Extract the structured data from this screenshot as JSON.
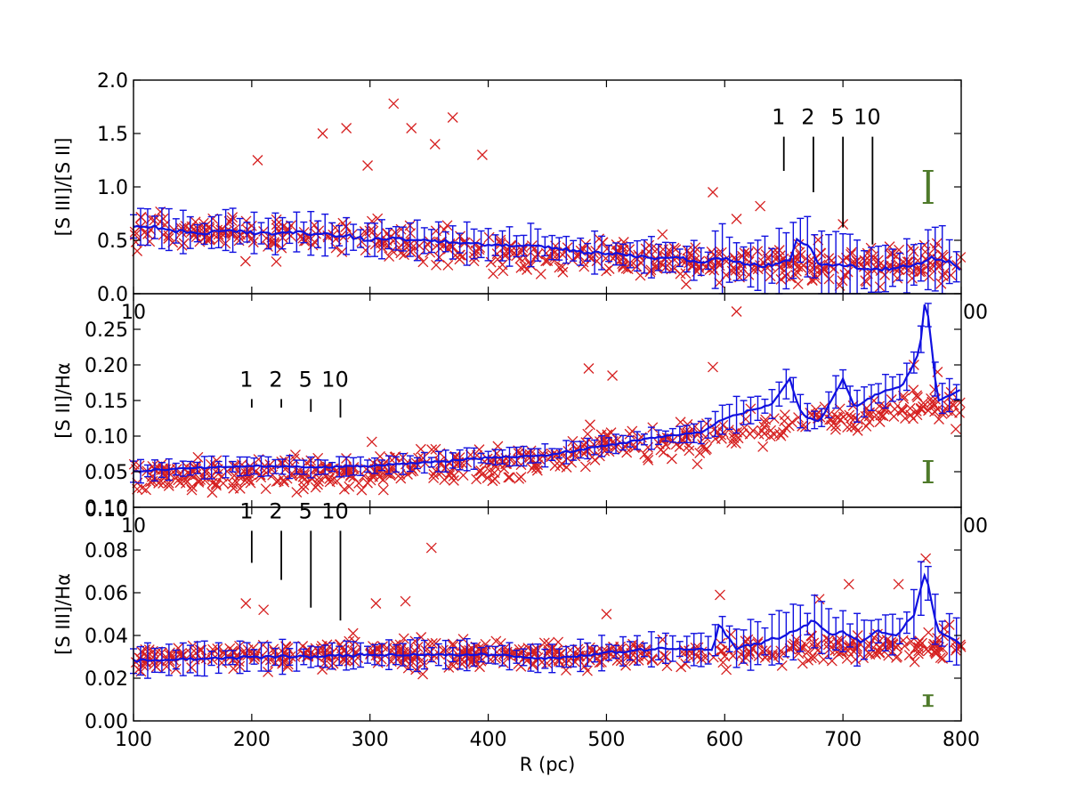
{
  "chart_data": [
    {
      "type": "scatter",
      "panel": "top",
      "ylabel": "[S III]/[S II]",
      "xlim": [
        100,
        800
      ],
      "ylim": [
        0,
        2.0
      ],
      "yticks": [
        0.0,
        0.5,
        1.0,
        1.5,
        2.0
      ],
      "ytick_labels": [
        "0.0",
        "0.5",
        "1.0",
        "1.5",
        "2.0"
      ],
      "xticks": [
        100,
        200,
        300,
        400,
        500,
        600,
        700,
        800
      ],
      "xtick_labels_visible": [
        "10",
        "00"
      ],
      "scatter_center": [
        [
          100,
          0.6
        ],
        [
          150,
          0.58
        ],
        [
          200,
          0.55
        ],
        [
          250,
          0.52
        ],
        [
          300,
          0.5
        ],
        [
          350,
          0.45
        ],
        [
          400,
          0.4
        ],
        [
          450,
          0.36
        ],
        [
          500,
          0.34
        ],
        [
          550,
          0.32
        ],
        [
          600,
          0.3
        ],
        [
          650,
          0.28
        ],
        [
          700,
          0.27
        ],
        [
          750,
          0.27
        ],
        [
          800,
          0.27
        ]
      ],
      "scatter_spread": 0.22,
      "outliers": [
        [
          320,
          1.78
        ],
        [
          335,
          1.55
        ],
        [
          370,
          1.65
        ],
        [
          355,
          1.4
        ],
        [
          280,
          1.55
        ],
        [
          260,
          1.5
        ],
        [
          205,
          1.25
        ],
        [
          395,
          1.3
        ],
        [
          298,
          1.2
        ],
        [
          590,
          0.95
        ],
        [
          630,
          0.82
        ],
        [
          610,
          0.7
        ],
        [
          700,
          0.65
        ]
      ],
      "binned_line": [
        [
          100,
          0.63
        ],
        [
          120,
          0.62
        ],
        [
          140,
          0.58
        ],
        [
          160,
          0.56
        ],
        [
          180,
          0.6
        ],
        [
          200,
          0.57
        ],
        [
          220,
          0.56
        ],
        [
          240,
          0.58
        ],
        [
          260,
          0.55
        ],
        [
          280,
          0.54
        ],
        [
          300,
          0.5
        ],
        [
          320,
          0.52
        ],
        [
          340,
          0.5
        ],
        [
          360,
          0.49
        ],
        [
          380,
          0.47
        ],
        [
          400,
          0.46
        ],
        [
          420,
          0.44
        ],
        [
          440,
          0.46
        ],
        [
          460,
          0.42
        ],
        [
          480,
          0.39
        ],
        [
          500,
          0.38
        ],
        [
          520,
          0.36
        ],
        [
          540,
          0.34
        ],
        [
          560,
          0.34
        ],
        [
          580,
          0.3
        ],
        [
          600,
          0.33
        ],
        [
          620,
          0.27
        ],
        [
          640,
          0.26
        ],
        [
          655,
          0.32
        ],
        [
          662,
          0.52
        ],
        [
          672,
          0.42
        ],
        [
          680,
          0.28
        ],
        [
          700,
          0.27
        ],
        [
          720,
          0.22
        ],
        [
          740,
          0.24
        ],
        [
          760,
          0.27
        ],
        [
          775,
          0.33
        ],
        [
          790,
          0.3
        ],
        [
          800,
          0.22
        ]
      ],
      "error_typical": 0.15,
      "markers": [
        {
          "label": "1",
          "x": 650,
          "y_top": 1.47,
          "y_bottom": 1.15
        },
        {
          "label": "2",
          "x": 675,
          "y_top": 1.47,
          "y_bottom": 0.95
        },
        {
          "label": "5",
          "x": 700,
          "y_top": 1.47,
          "y_bottom": 0.62
        },
        {
          "label": "10",
          "x": 725,
          "y_top": 1.47,
          "y_bottom": 0.46
        }
      ],
      "sys_error_bar": {
        "x": 772,
        "low": 0.85,
        "high": 1.15,
        "color": "#4e7a2a"
      }
    },
    {
      "type": "scatter",
      "panel": "middle",
      "ylabel": "[S II]/Hα",
      "xlim": [
        100,
        800
      ],
      "ylim": [
        0,
        0.3
      ],
      "yticks": [
        0.05,
        0.1,
        0.15,
        0.2,
        0.25
      ],
      "ytick_labels": [
        "0.05",
        "0.10",
        "0.15",
        "0.20",
        "0.25"
      ],
      "xticks": [
        100,
        200,
        300,
        400,
        500,
        600,
        700,
        800
      ],
      "xtick_labels_visible": [
        "10",
        "00"
      ],
      "scatter_center": [
        [
          100,
          0.045
        ],
        [
          200,
          0.045
        ],
        [
          300,
          0.05
        ],
        [
          400,
          0.06
        ],
        [
          450,
          0.07
        ],
        [
          500,
          0.085
        ],
        [
          550,
          0.09
        ],
        [
          600,
          0.1
        ],
        [
          650,
          0.12
        ],
        [
          700,
          0.13
        ],
        [
          750,
          0.14
        ],
        [
          800,
          0.14
        ]
      ],
      "scatter_spread": 0.03,
      "outliers": [
        [
          610,
          0.275
        ],
        [
          485,
          0.195
        ],
        [
          505,
          0.185
        ],
        [
          590,
          0.197
        ],
        [
          760,
          0.2
        ],
        [
          780,
          0.19
        ]
      ],
      "binned_line": [
        [
          100,
          0.05
        ],
        [
          150,
          0.055
        ],
        [
          200,
          0.058
        ],
        [
          250,
          0.056
        ],
        [
          300,
          0.058
        ],
        [
          350,
          0.063
        ],
        [
          400,
          0.07
        ],
        [
          450,
          0.073
        ],
        [
          500,
          0.087
        ],
        [
          550,
          0.1
        ],
        [
          580,
          0.105
        ],
        [
          600,
          0.125
        ],
        [
          620,
          0.135
        ],
        [
          640,
          0.145
        ],
        [
          655,
          0.18
        ],
        [
          665,
          0.13
        ],
        [
          680,
          0.12
        ],
        [
          700,
          0.18
        ],
        [
          710,
          0.14
        ],
        [
          730,
          0.16
        ],
        [
          750,
          0.17
        ],
        [
          765,
          0.22
        ],
        [
          770,
          0.3
        ],
        [
          780,
          0.15
        ],
        [
          800,
          0.165
        ]
      ],
      "error_typical": 0.012,
      "markers": [
        {
          "label": "1",
          "x": 200,
          "y_top": 0.152,
          "y_bottom": 0.14
        },
        {
          "label": "2",
          "x": 225,
          "y_top": 0.152,
          "y_bottom": 0.14
        },
        {
          "label": "5",
          "x": 250,
          "y_top": 0.152,
          "y_bottom": 0.134
        },
        {
          "label": "10",
          "x": 275,
          "y_top": 0.152,
          "y_bottom": 0.126
        }
      ],
      "sys_error_bar": {
        "x": 772,
        "low": 0.035,
        "high": 0.065,
        "color": "#4e7a2a"
      }
    },
    {
      "type": "scatter",
      "panel": "bottom",
      "ylabel": "[S III]/Hα",
      "xlabel": "R (pc)",
      "xlim": [
        100,
        800
      ],
      "ylim": [
        0,
        0.1
      ],
      "yticks": [
        0.0,
        0.02,
        0.04,
        0.06,
        0.08,
        0.1
      ],
      "ytick_labels": [
        "0.00",
        "0.02",
        "0.04",
        "0.06",
        "0.08",
        "0.10"
      ],
      "xticks": [
        100,
        200,
        300,
        400,
        500,
        600,
        700,
        800
      ],
      "xtick_labels": [
        "100",
        "200",
        "300",
        "400",
        "500",
        "600",
        "700",
        "800"
      ],
      "scatter_center": [
        [
          100,
          0.03
        ],
        [
          200,
          0.031
        ],
        [
          300,
          0.032
        ],
        [
          400,
          0.031
        ],
        [
          500,
          0.031
        ],
        [
          600,
          0.032
        ],
        [
          700,
          0.035
        ],
        [
          800,
          0.035
        ]
      ],
      "scatter_spread": 0.008,
      "outliers": [
        [
          352,
          0.081
        ],
        [
          195,
          0.055
        ],
        [
          210,
          0.052
        ],
        [
          305,
          0.055
        ],
        [
          330,
          0.056
        ],
        [
          500,
          0.05
        ],
        [
          596,
          0.059
        ],
        [
          680,
          0.057
        ],
        [
          705,
          0.064
        ],
        [
          747,
          0.064
        ],
        [
          770,
          0.076
        ],
        [
          790,
          0.045
        ]
      ],
      "binned_line": [
        [
          100,
          0.028
        ],
        [
          150,
          0.029
        ],
        [
          200,
          0.03
        ],
        [
          250,
          0.03
        ],
        [
          300,
          0.031
        ],
        [
          350,
          0.031
        ],
        [
          400,
          0.031
        ],
        [
          450,
          0.029
        ],
        [
          500,
          0.032
        ],
        [
          550,
          0.034
        ],
        [
          590,
          0.033
        ],
        [
          595,
          0.045
        ],
        [
          610,
          0.034
        ],
        [
          640,
          0.038
        ],
        [
          660,
          0.042
        ],
        [
          675,
          0.047
        ],
        [
          690,
          0.04
        ],
        [
          700,
          0.042
        ],
        [
          715,
          0.037
        ],
        [
          730,
          0.042
        ],
        [
          745,
          0.04
        ],
        [
          760,
          0.05
        ],
        [
          770,
          0.07
        ],
        [
          780,
          0.042
        ],
        [
          800,
          0.036
        ]
      ],
      "error_typical": 0.006,
      "markers": [
        {
          "label": "1",
          "x": 200,
          "y_top": 0.089,
          "y_bottom": 0.074
        },
        {
          "label": "2",
          "x": 225,
          "y_top": 0.089,
          "y_bottom": 0.066
        },
        {
          "label": "5",
          "x": 250,
          "y_top": 0.089,
          "y_bottom": 0.053
        },
        {
          "label": "10",
          "x": 275,
          "y_top": 0.089,
          "y_bottom": 0.047
        }
      ],
      "sys_error_bar": {
        "x": 772,
        "low": 0.007,
        "high": 0.012,
        "color": "#4e7a2a"
      },
      "extra_overlap_labels": [
        "0.10"
      ]
    }
  ],
  "colors": {
    "scatter": "#d62020",
    "line": "#1010e0",
    "sys": "#4e7a2a",
    "axes": "#000000"
  }
}
